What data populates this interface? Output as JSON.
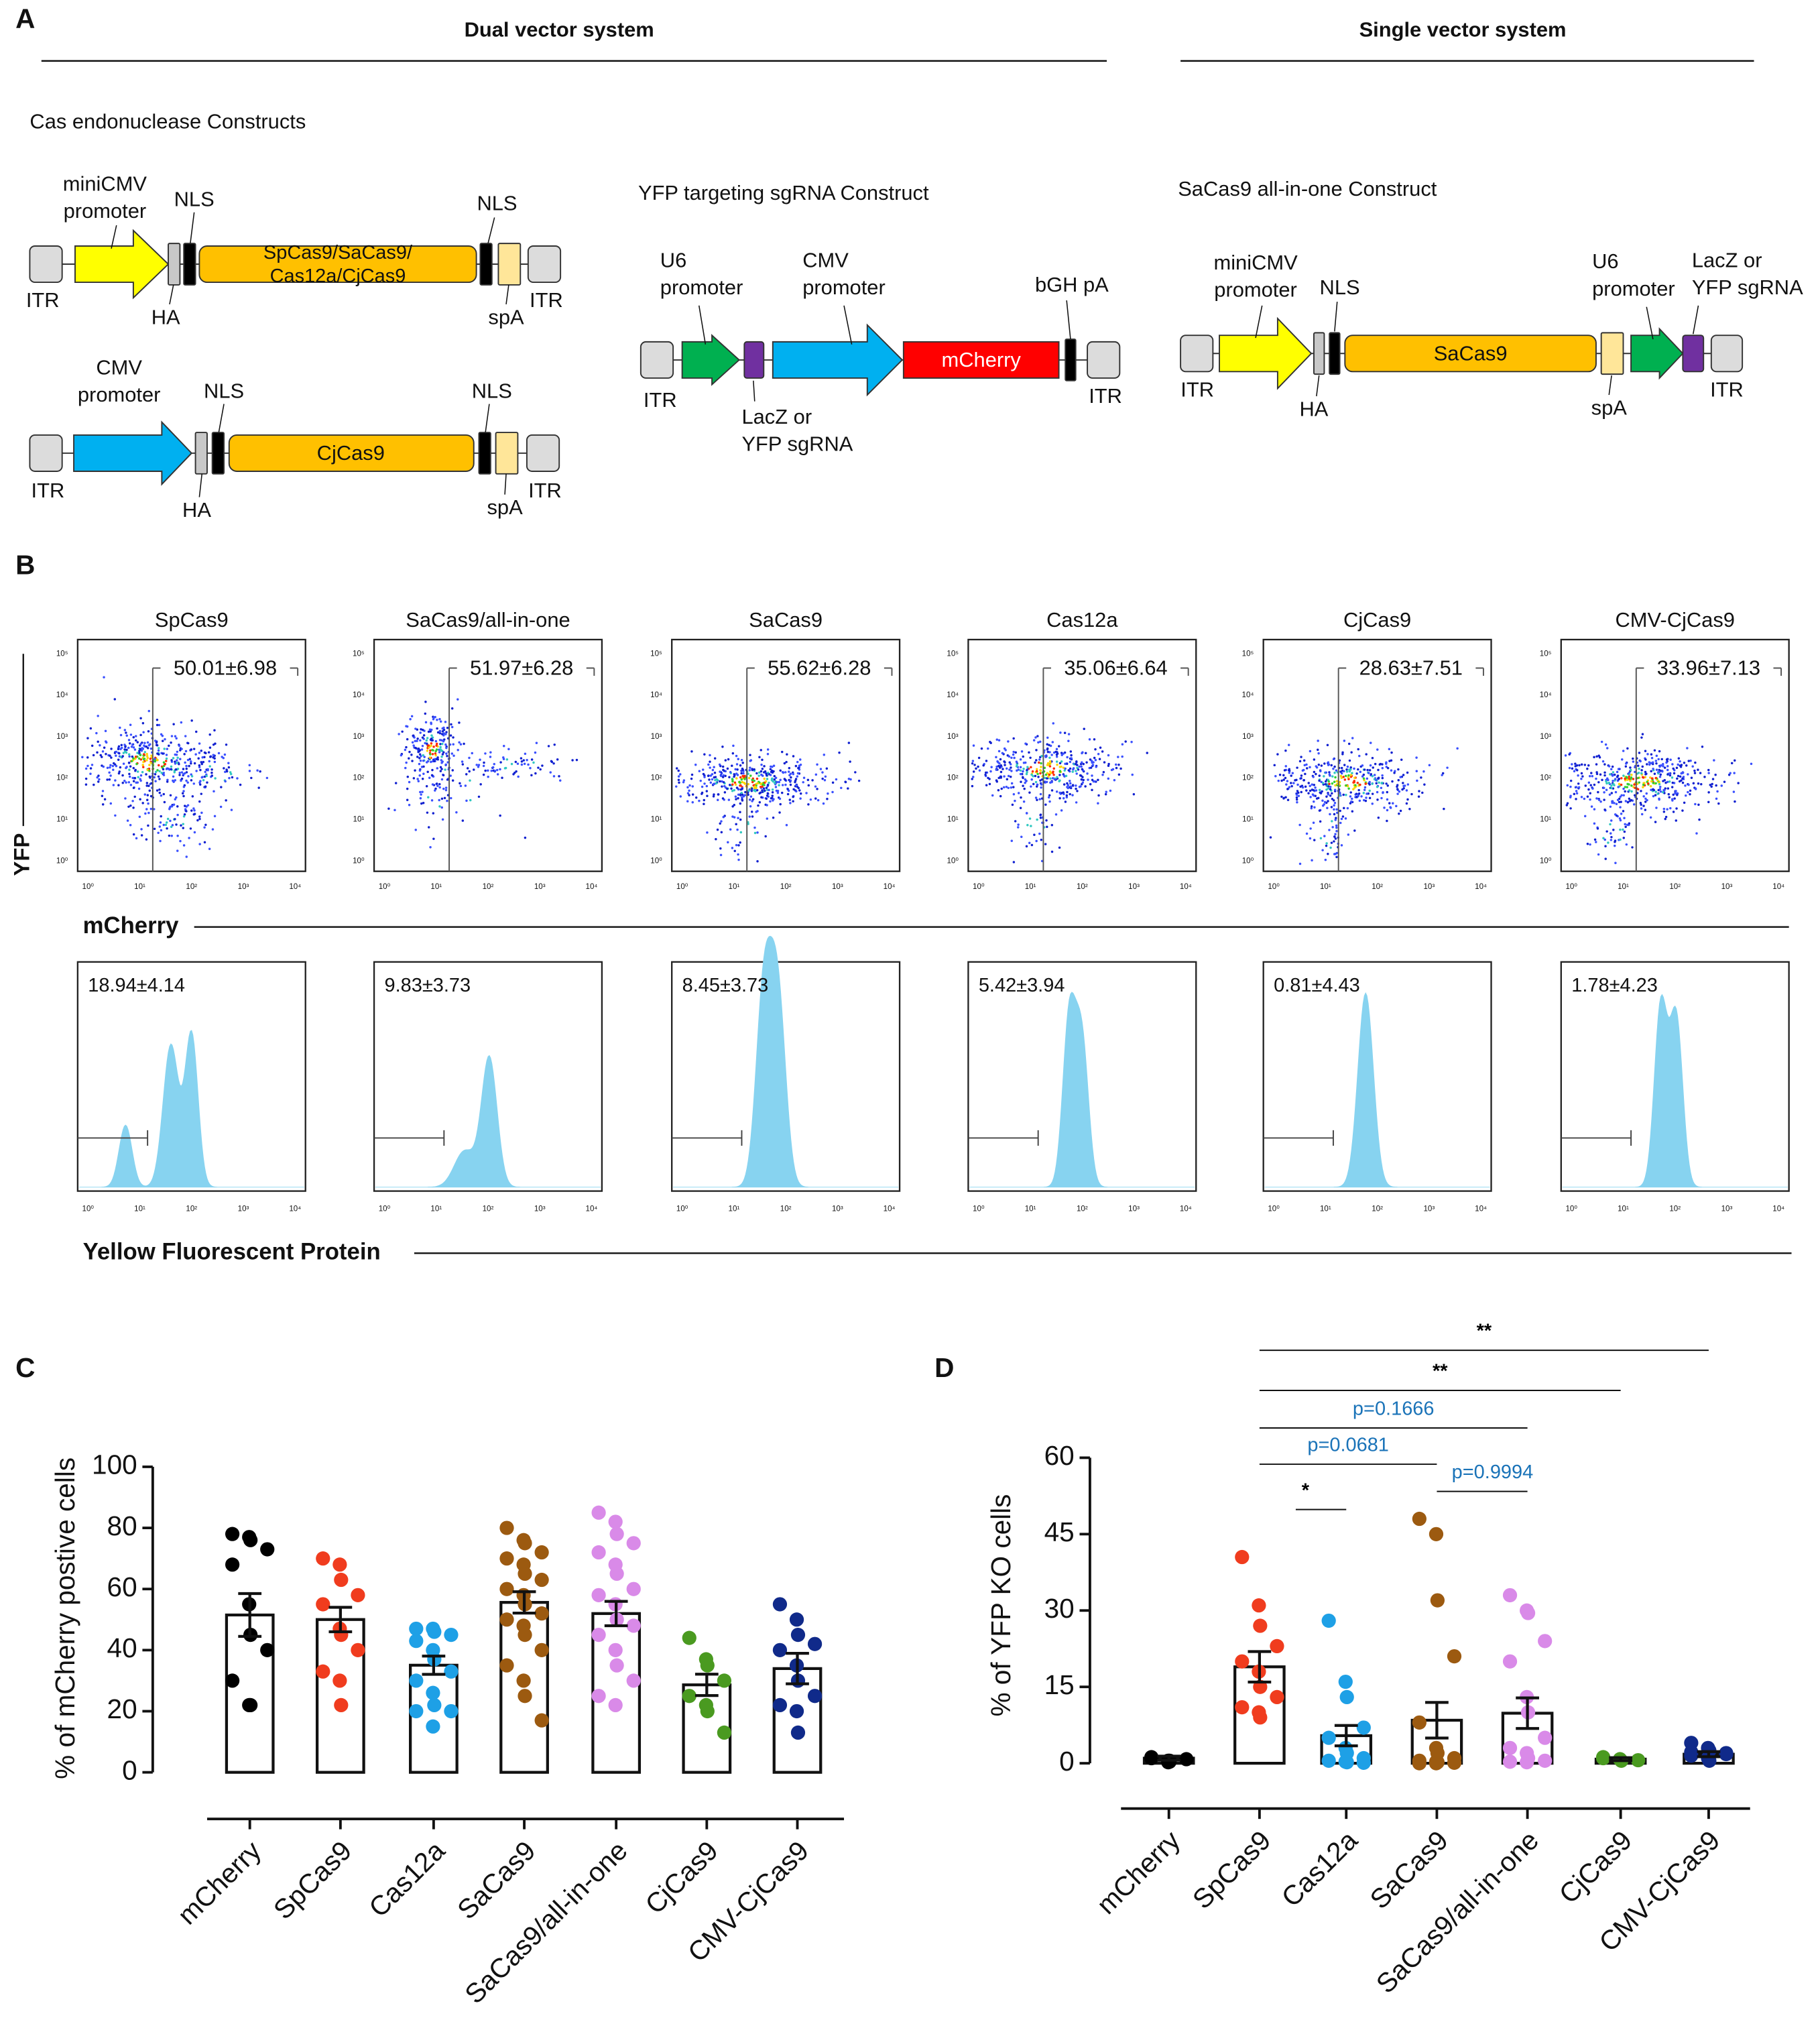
{
  "panel_a": {
    "label": "A",
    "dual": "Dual vector system",
    "single": "Single vector system",
    "cas_title": "Cas endonuclease Constructs",
    "sgrna_title": "YFP targeting sgRNA Construct",
    "aio_title": "SaCas9 all-in-one Construct",
    "c1": {
      "promoter": [
        "miniCMV",
        "promoter"
      ],
      "nls": "NLS",
      "ha": "HA",
      "itr": "ITR",
      "gene": [
        "SpCas9/SaCas9/",
        "Cas12a/CjCas9"
      ],
      "spa": "spA"
    },
    "c2": {
      "promoter": [
        "CMV",
        "promoter"
      ],
      "nls": "NLS",
      "ha": "HA",
      "itr": "ITR",
      "gene": "CjCas9",
      "spa": "spA"
    },
    "c3": {
      "u6": [
        "U6",
        "promoter"
      ],
      "cmv": [
        "CMV",
        "promoter"
      ],
      "bgh": "bGH pA",
      "itr": "ITR",
      "gene": "mCherry",
      "sgrna": [
        "LacZ or",
        "YFP sgRNA"
      ]
    },
    "c4": {
      "promoter": [
        "miniCMV",
        "promoter"
      ],
      "nls": "NLS",
      "ha": "HA",
      "itr": "ITR",
      "gene": "SaCas9",
      "spa": "spA",
      "u6": [
        "U6",
        "promoter"
      ],
      "sgrna": [
        "LacZ or",
        "YFP sgRNA"
      ]
    }
  },
  "panel_b": {
    "label": "B",
    "y_label": "YFP",
    "x_label": "mCherry",
    "hist_label": "Yellow Fluorescent Protein",
    "xticks": [
      "10⁰",
      "10¹",
      "10²",
      "10³",
      "10⁴"
    ],
    "yticks": [
      "10⁰",
      "10¹",
      "10²",
      "10³",
      "10⁴",
      "10⁵"
    ],
    "samples": [
      {
        "name": "SpCas9",
        "scatter": "50.01±6.98",
        "hist": "18.94±4.14"
      },
      {
        "name": "SaCas9/all-in-one",
        "scatter": "51.97±6.28",
        "hist": "9.83±3.73"
      },
      {
        "name": "SaCas9",
        "scatter": "55.62±6.28",
        "hist": "8.45±3.73"
      },
      {
        "name": "Cas12a",
        "scatter": "35.06±6.64",
        "hist": "5.42±3.94"
      },
      {
        "name": "CjCas9",
        "scatter": "28.63±7.51",
        "hist": "0.81±4.43"
      },
      {
        "name": "CMV-CjCas9",
        "scatter": "33.96±7.13",
        "hist": "1.78±4.23"
      }
    ]
  },
  "chart_data": [
    {
      "label": "C",
      "type": "bar",
      "y_label": "% of mCherry postive cells",
      "categories": [
        "mCherry",
        "SpCas9",
        "Cas12a",
        "SaCas9",
        "SaCas9/all-in-one",
        "CjCas9",
        "CMV-CjCas9"
      ],
      "colors": [
        "#000000",
        "#f03c1e",
        "#1ea0e6",
        "#9c5a10",
        "#d98ae8",
        "#4a9a20",
        "#102a8a"
      ],
      "values": [
        51.5,
        50.01,
        35.06,
        55.62,
        51.97,
        28.63,
        33.96
      ],
      "errors": [
        7,
        4,
        3,
        3.5,
        4,
        3.5,
        5
      ],
      "points": [
        [
          78,
          77,
          76,
          73,
          68,
          55,
          45,
          40,
          30,
          22,
          22
        ],
        [
          70,
          68,
          63,
          58,
          55,
          47,
          45,
          40,
          33,
          30,
          22
        ],
        [
          47,
          47,
          46,
          45,
          43,
          40,
          37,
          33,
          30,
          26,
          22,
          20,
          20,
          15
        ],
        [
          80,
          76,
          75,
          72,
          70,
          68,
          65,
          63,
          60,
          58,
          55,
          52,
          50,
          48,
          45,
          40,
          35,
          30,
          25,
          17
        ],
        [
          85,
          82,
          78,
          75,
          72,
          68,
          65,
          60,
          58,
          55,
          50,
          48,
          45,
          40,
          35,
          30,
          25,
          22
        ],
        [
          44,
          37,
          35,
          30,
          25,
          22,
          20,
          13
        ],
        [
          55,
          50,
          45,
          42,
          40,
          35,
          30,
          25,
          22,
          20,
          13
        ]
      ],
      "ylim": [
        0,
        100
      ],
      "yticks": [
        0,
        20,
        40,
        60,
        80,
        100
      ]
    },
    {
      "label": "D",
      "type": "bar",
      "y_label": "% of YFP KO cells",
      "categories": [
        "mCherry",
        "SpCas9",
        "Cas12a",
        "SaCas9",
        "SaCas9/all-in-one",
        "CjCas9",
        "CMV-CjCas9"
      ],
      "colors": [
        "#000000",
        "#f03c1e",
        "#1ea0e6",
        "#9c5a10",
        "#d98ae8",
        "#4a9a20",
        "#102a8a"
      ],
      "values": [
        1,
        18.94,
        5.42,
        8.45,
        9.83,
        0.81,
        1.78
      ],
      "errors": [
        0.4,
        3,
        2,
        3.5,
        3,
        0.3,
        0.5
      ],
      "points": [
        [
          1,
          0.5,
          0.3,
          0.8,
          1.2,
          0.2,
          0.5
        ],
        [
          40.5,
          31,
          27,
          23,
          20,
          18,
          15,
          13,
          11,
          10,
          9
        ],
        [
          28,
          16,
          13,
          7,
          5,
          3,
          2,
          1,
          0.5,
          0.3,
          0.2,
          0.1
        ],
        [
          48,
          45,
          32,
          21,
          8,
          3,
          2,
          1,
          0.5,
          0.3,
          0.2,
          0.1,
          0,
          0
        ],
        [
          33,
          30,
          29.5,
          24,
          20,
          13,
          10,
          5,
          3,
          2,
          1,
          0.5,
          0.3,
          0.2
        ],
        [
          1,
          0.8,
          0.5,
          0.6,
          1.2
        ],
        [
          4,
          3,
          2.5,
          2,
          1.5,
          1,
          0.5,
          1.8,
          2.2
        ]
      ],
      "ylim": [
        0,
        60
      ],
      "yticks": [
        0,
        15,
        30,
        45,
        60
      ],
      "comparisons": [
        {
          "between": [
            "SpCas9",
            "CMV-CjCas9"
          ],
          "label": "**",
          "color": "#000000"
        },
        {
          "between": [
            "SpCas9",
            "CjCas9"
          ],
          "label": "**",
          "color": "#000000"
        },
        {
          "between": [
            "SpCas9",
            "SaCas9/all-in-one"
          ],
          "label": "p=0.1666",
          "color": "#1a73b8"
        },
        {
          "between": [
            "SpCas9",
            "SaCas9"
          ],
          "label": "p=0.0681",
          "color": "#1a73b8"
        },
        {
          "between": [
            "SaCas9",
            "SaCas9/all-in-one"
          ],
          "label": "p=0.9994",
          "color": "#1a73b8"
        },
        {
          "between": [
            "SpCas9",
            "Cas12a"
          ],
          "label": "*",
          "color": "#000000"
        }
      ]
    }
  ]
}
